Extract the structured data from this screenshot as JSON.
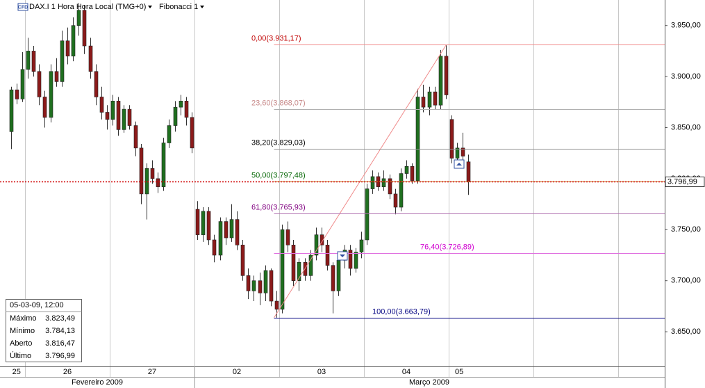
{
  "header": {
    "symbol": "DAX.I 1 Hora Hora Local (TMG+0)",
    "study": "Fibonacci 1",
    "badge": "CFD"
  },
  "chart_data": {
    "type": "candlestick",
    "ylim": [
      3616,
      3975
    ],
    "yticks": [
      {
        "value": 3650,
        "label": "3.650,00"
      },
      {
        "value": 3700,
        "label": "3.700,00"
      },
      {
        "value": 3750,
        "label": "3.750,00"
      },
      {
        "value": 3800,
        "label": "3.800,00"
      },
      {
        "value": 3850,
        "label": "3.850,00"
      },
      {
        "value": 3900,
        "label": "3.900,00"
      },
      {
        "value": 3950,
        "label": "3.950,00"
      }
    ],
    "up_color": "#1f6f1f",
    "down_color": "#8b1a1a",
    "days": [
      {
        "label": "25",
        "candles": [
          [
            3846,
            3890,
            3829,
            3887
          ],
          [
            3887,
            3893,
            3873,
            3878
          ],
          [
            3878,
            3924,
            3875,
            3907
          ]
        ]
      },
      {
        "label": "26",
        "candles": [
          [
            3907,
            3938,
            3898,
            3925
          ],
          [
            3925,
            3930,
            3900,
            3905
          ],
          [
            3905,
            3912,
            3872,
            3880
          ],
          [
            3880,
            3886,
            3850,
            3860
          ],
          [
            3860,
            3912,
            3855,
            3905
          ],
          [
            3905,
            3918,
            3890,
            3895
          ],
          [
            3895,
            3945,
            3890,
            3935
          ],
          [
            3935,
            3948,
            3912,
            3920
          ],
          [
            3920,
            3958,
            3915,
            3950
          ],
          [
            3950,
            3972,
            3940,
            3965
          ],
          [
            3965,
            3970,
            3922,
            3930
          ],
          [
            3930,
            3938,
            3898,
            3905
          ],
          [
            3905,
            3912,
            3872,
            3880
          ],
          [
            3880,
            3890,
            3858,
            3865
          ],
          [
            3865,
            3872,
            3848,
            3858
          ]
        ]
      },
      {
        "label": "27",
        "candles": [
          [
            3858,
            3882,
            3852,
            3876
          ],
          [
            3876,
            3880,
            3842,
            3848
          ],
          [
            3848,
            3872,
            3845,
            3868
          ],
          [
            3868,
            3872,
            3848,
            3852
          ],
          [
            3852,
            3856,
            3822,
            3830
          ],
          [
            3830,
            3834,
            3775,
            3785
          ],
          [
            3785,
            3815,
            3760,
            3810
          ],
          [
            3810,
            3818,
            3795,
            3800
          ],
          [
            3800,
            3806,
            3786,
            3792
          ],
          [
            3792,
            3840,
            3788,
            3835
          ],
          [
            3835,
            3858,
            3830,
            3852
          ],
          [
            3852,
            3876,
            3846,
            3870
          ],
          [
            3870,
            3882,
            3862,
            3876
          ],
          [
            3876,
            3880,
            3852,
            3860
          ],
          [
            3860,
            3865,
            3825,
            3830
          ]
        ]
      },
      {
        "label": "02",
        "candles": [
          [
            3770,
            3778,
            3740,
            3745
          ],
          [
            3745,
            3772,
            3738,
            3768
          ],
          [
            3768,
            3772,
            3735,
            3740
          ],
          [
            3740,
            3745,
            3718,
            3725
          ],
          [
            3725,
            3762,
            3720,
            3758
          ],
          [
            3758,
            3762,
            3735,
            3742
          ],
          [
            3742,
            3775,
            3738,
            3760
          ],
          [
            3760,
            3768,
            3730,
            3735
          ],
          [
            3735,
            3740,
            3700,
            3705
          ],
          [
            3705,
            3712,
            3682,
            3690
          ],
          [
            3690,
            3705,
            3680,
            3700
          ],
          [
            3700,
            3708,
            3676,
            3688
          ],
          [
            3688,
            3715,
            3680,
            3710
          ],
          [
            3710,
            3712,
            3675,
            3680
          ],
          [
            3680,
            3690,
            3663.79,
            3672
          ]
        ]
      },
      {
        "label": "03",
        "candles": [
          [
            3672,
            3755,
            3668,
            3750
          ],
          [
            3750,
            3758,
            3728,
            3735
          ],
          [
            3735,
            3740,
            3695,
            3700
          ],
          [
            3700,
            3722,
            3690,
            3718
          ],
          [
            3718,
            3722,
            3700,
            3705
          ],
          [
            3705,
            3730,
            3700,
            3725
          ],
          [
            3725,
            3752,
            3720,
            3745
          ],
          [
            3745,
            3752,
            3728,
            3735
          ],
          [
            3735,
            3740,
            3710,
            3715
          ],
          [
            3715,
            3718,
            3668,
            3690
          ],
          [
            3690,
            3725,
            3685,
            3720
          ],
          [
            3720,
            3735,
            3712,
            3730
          ],
          [
            3730,
            3735,
            3705,
            3712
          ],
          [
            3712,
            3732,
            3708,
            3728
          ],
          [
            3728,
            3748,
            3722,
            3740
          ]
        ]
      },
      {
        "label": "04",
        "candles": [
          [
            3740,
            3795,
            3735,
            3790
          ],
          [
            3790,
            3808,
            3785,
            3802
          ],
          [
            3802,
            3806,
            3788,
            3792
          ],
          [
            3792,
            3808,
            3788,
            3800
          ],
          [
            3800,
            3804,
            3780,
            3785
          ],
          [
            3785,
            3790,
            3765,
            3772
          ],
          [
            3772,
            3810,
            3768,
            3805
          ],
          [
            3805,
            3818,
            3800,
            3812
          ],
          [
            3812,
            3815,
            3795,
            3798
          ],
          [
            3798,
            3888,
            3795,
            3880
          ],
          [
            3880,
            3892,
            3865,
            3870
          ],
          [
            3870,
            3890,
            3862,
            3885
          ],
          [
            3885,
            3890,
            3868,
            3872
          ],
          [
            3872,
            3926,
            3868,
            3920
          ],
          [
            3920,
            3931.17,
            3878,
            3882
          ]
        ]
      },
      {
        "label": "05",
        "candles": [
          [
            3858,
            3862,
            3815,
            3820
          ],
          [
            3820,
            3835,
            3812,
            3830
          ],
          [
            3830,
            3845,
            3815,
            3822
          ],
          [
            3816.47,
            3823.49,
            3784.13,
            3796.99
          ]
        ]
      }
    ],
    "months": [
      {
        "label": "Fevereiro 2009"
      },
      {
        "label": "Março 2009"
      }
    ],
    "fib_levels": [
      {
        "label": "0,00(3.931,17)",
        "value": 3931.17,
        "color": "#c00000",
        "line_color": "#f08a8a"
      },
      {
        "label": "23,60(3.868,07)",
        "value": 3868.07,
        "color": "#c88a8a",
        "line_color": "#b0b0b0"
      },
      {
        "label": "38,20(3.829,03)",
        "value": 3829.03,
        "color": "#000000",
        "line_color": "#909090"
      },
      {
        "label": "50,00(3.797,48)",
        "value": 3797.48,
        "color": "#006400",
        "line_color": "#c89020"
      },
      {
        "label": "61,80(3.765,93)",
        "value": 3765.93,
        "color": "#800080",
        "line_color": "#b070b0"
      },
      {
        "label": "76,40(3.726,89)",
        "value": 3726.89,
        "color": "#d000d0",
        "line_color": "#e070e0"
      },
      {
        "label": "100,00(3.663,79)",
        "value": 3663.79,
        "color": "#000080",
        "line_color": "#000080"
      }
    ],
    "last_price": {
      "value": 3796.99,
      "label": "3.796,99",
      "color": "#d00000"
    }
  },
  "info_box": {
    "title": "05-03-09, 12:00",
    "rows": [
      [
        "Máximo",
        "3.823,49"
      ],
      [
        "Mínimo",
        "3.784,13"
      ],
      [
        "Aberto",
        "3.816,47"
      ],
      [
        "Último",
        "3.796,99"
      ]
    ]
  }
}
